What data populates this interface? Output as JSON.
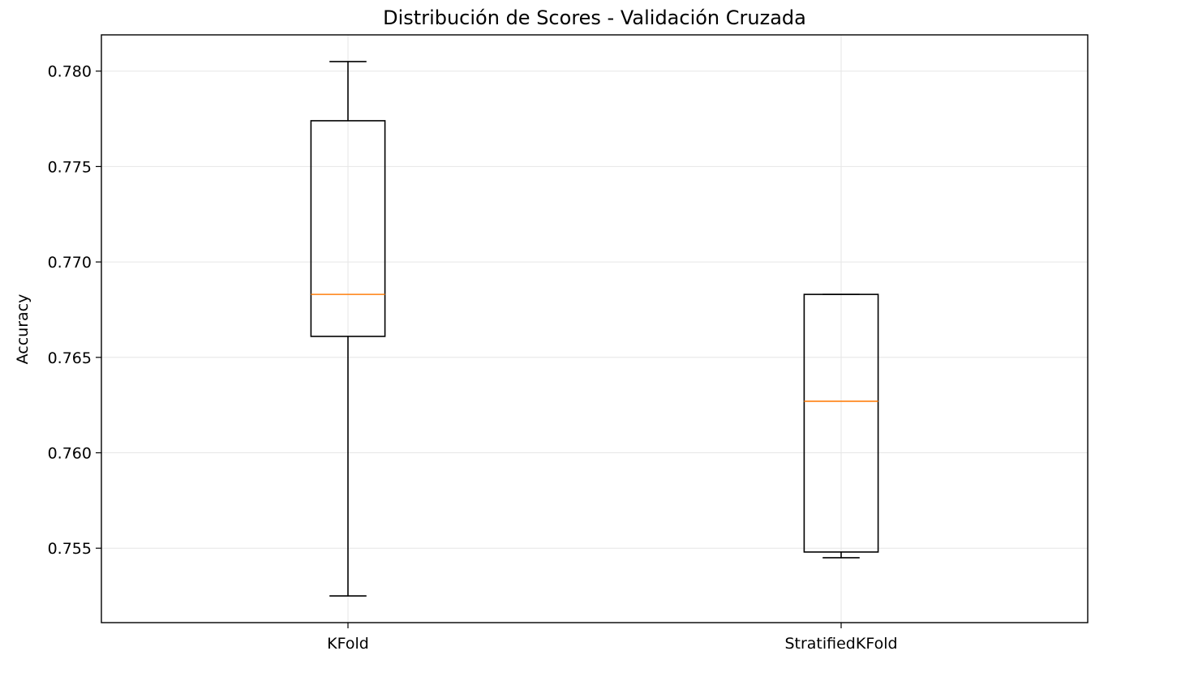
{
  "chart_data": {
    "type": "box",
    "title": "Distribución de Scores - Validación Cruzada",
    "xlabel": "",
    "ylabel": "Accuracy",
    "ylim": [
      0.7511,
      0.7819
    ],
    "yticks": [
      0.755,
      0.76,
      0.765,
      0.77,
      0.775,
      0.78
    ],
    "ytick_labels": [
      "0.755",
      "0.760",
      "0.765",
      "0.770",
      "0.775",
      "0.780"
    ],
    "categories": [
      "KFold",
      "StratifiedKFold"
    ],
    "boxes": [
      {
        "category": "KFold",
        "whisker_low": 0.7525,
        "q1": 0.7661,
        "median": 0.7683,
        "q3": 0.7774,
        "whisker_high": 0.7805
      },
      {
        "category": "StratifiedKFold",
        "whisker_low": 0.7545,
        "q1": 0.7548,
        "median": 0.7627,
        "q3": 0.7683,
        "whisker_high": 0.7683
      }
    ],
    "grid": true,
    "colors": {
      "box": "#000000",
      "median": "#ff7f0e",
      "grid": "#e6e6e6"
    }
  }
}
